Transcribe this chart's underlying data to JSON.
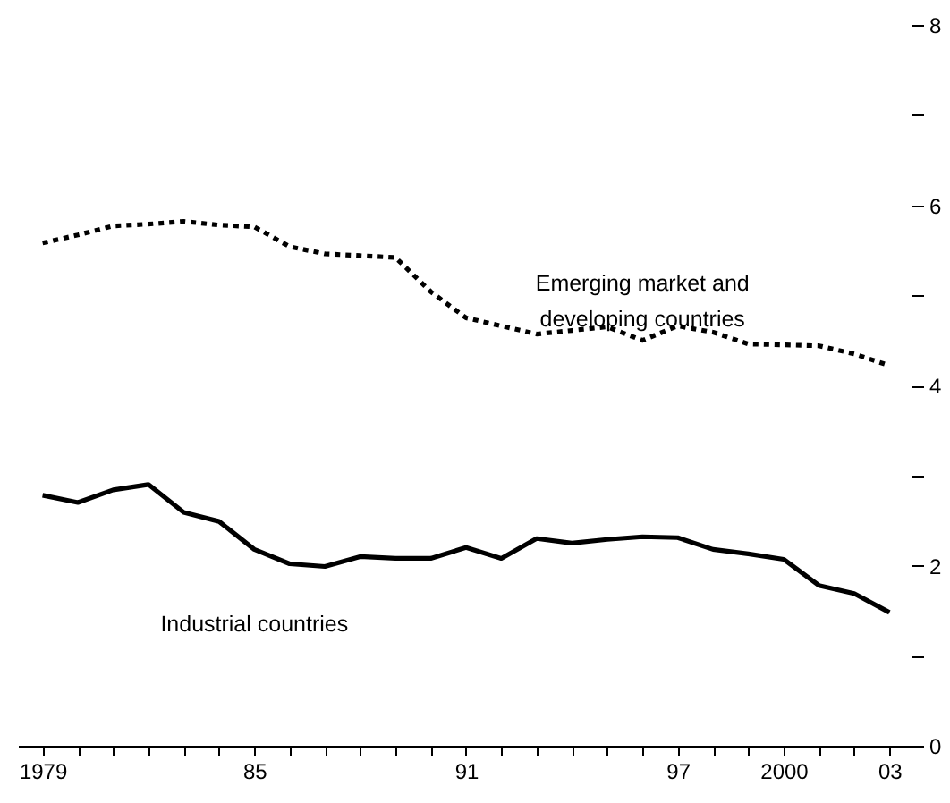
{
  "chart_data": {
    "type": "line",
    "x": [
      1979,
      1980,
      1981,
      1982,
      1983,
      1984,
      1985,
      1986,
      1987,
      1988,
      1989,
      1990,
      1991,
      1992,
      1993,
      1994,
      1995,
      1996,
      1997,
      1998,
      1999,
      2000,
      2001,
      2002,
      2003
    ],
    "series": [
      {
        "name": "Emerging market and\ndeveloping countries",
        "color": "#000000",
        "line_style": "dotted",
        "values": [
          5.58,
          5.67,
          5.77,
          5.79,
          5.82,
          5.78,
          5.76,
          5.54,
          5.46,
          5.44,
          5.42,
          5.04,
          4.75,
          4.66,
          4.57,
          4.61,
          4.65,
          4.5,
          4.66,
          4.59,
          4.46,
          4.45,
          4.44,
          4.35,
          4.22
        ]
      },
      {
        "name": "Industrial countries",
        "color": "#000000",
        "line_style": "solid",
        "values": [
          2.78,
          2.7,
          2.84,
          2.9,
          2.59,
          2.49,
          2.18,
          2.02,
          1.99,
          2.1,
          2.08,
          2.08,
          2.2,
          2.08,
          2.3,
          2.25,
          2.29,
          2.32,
          2.31,
          2.18,
          2.13,
          2.07,
          1.78,
          1.69,
          1.48
        ]
      }
    ],
    "xlim": [
      1978.3,
      2003.6
    ],
    "xticks": [
      {
        "value": 1979,
        "label": "1979"
      },
      {
        "value": 1980,
        "label": null
      },
      {
        "value": 1981,
        "label": null
      },
      {
        "value": 1982,
        "label": null
      },
      {
        "value": 1983,
        "label": null
      },
      {
        "value": 1984,
        "label": null
      },
      {
        "value": 1985,
        "label": "85"
      },
      {
        "value": 1986,
        "label": null
      },
      {
        "value": 1987,
        "label": null
      },
      {
        "value": 1988,
        "label": null
      },
      {
        "value": 1989,
        "label": null
      },
      {
        "value": 1990,
        "label": null
      },
      {
        "value": 1991,
        "label": "91"
      },
      {
        "value": 1992,
        "label": null
      },
      {
        "value": 1993,
        "label": null
      },
      {
        "value": 1994,
        "label": null
      },
      {
        "value": 1995,
        "label": null
      },
      {
        "value": 1996,
        "label": null
      },
      {
        "value": 1997,
        "label": "97"
      },
      {
        "value": 1998,
        "label": null
      },
      {
        "value": 1999,
        "label": null
      },
      {
        "value": 2000,
        "label": "2000"
      },
      {
        "value": 2001,
        "label": null
      },
      {
        "value": 2002,
        "label": null
      },
      {
        "value": 2003,
        "label": "03"
      }
    ],
    "ylim": [
      0,
      8
    ],
    "yticks": [
      0,
      {
        "value": 1,
        "label": null
      },
      2,
      {
        "value": 3,
        "label": null
      },
      4,
      {
        "value": 5,
        "label": null
      },
      6,
      {
        "value": 7,
        "label": null
      },
      8
    ],
    "grid": false,
    "marker": "none"
  }
}
